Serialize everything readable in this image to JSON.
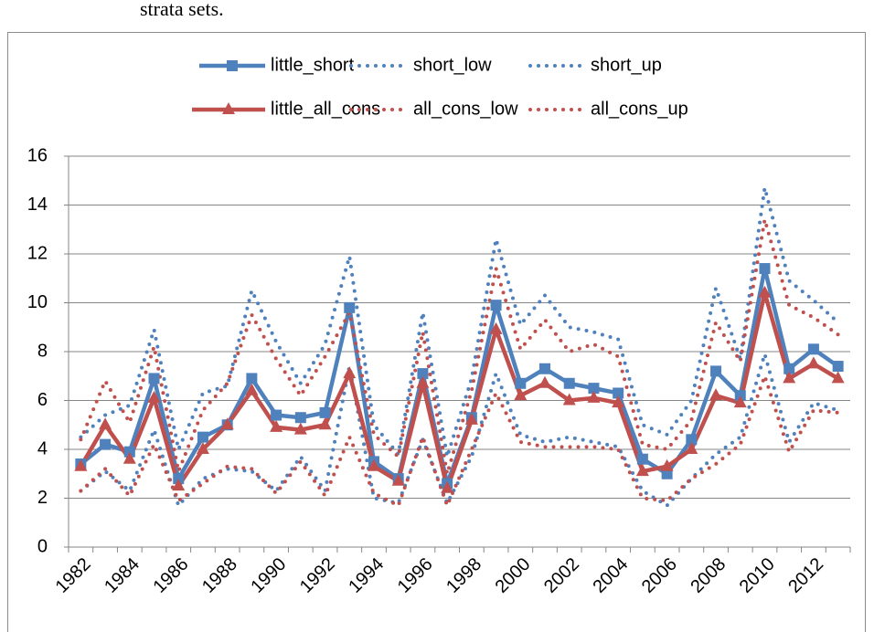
{
  "caption": "strata sets.",
  "chart_data": {
    "type": "line",
    "categories": [
      "1982",
      null,
      "1984",
      null,
      "1986",
      null,
      "1988",
      null,
      "1990",
      null,
      "1992",
      null,
      "1994",
      null,
      "1996",
      null,
      "1998",
      null,
      "2000",
      null,
      "2002",
      null,
      "2004",
      null,
      "2006",
      null,
      "2008",
      null,
      "2010",
      null,
      "2012",
      null
    ],
    "series": [
      {
        "name": "little_short",
        "color": "#4f81bd",
        "line_style": "solid",
        "marker": "square",
        "values": [
          3.4,
          4.2,
          3.9,
          6.9,
          2.8,
          4.5,
          5.0,
          6.9,
          5.4,
          5.3,
          5.5,
          9.8,
          3.5,
          2.8,
          7.1,
          2.6,
          5.3,
          9.9,
          6.7,
          7.3,
          6.7,
          6.5,
          6.3,
          3.6,
          3.0,
          4.4,
          7.2,
          6.2,
          11.4,
          7.3,
          8.1,
          7.4
        ]
      },
      {
        "name": "short_low",
        "color": "#4f81bd",
        "line_style": "dotted",
        "marker": null,
        "values": [
          2.3,
          3.1,
          2.3,
          4.8,
          1.7,
          2.8,
          3.2,
          3.1,
          2.3,
          3.7,
          2.3,
          7.4,
          2.0,
          1.8,
          4.4,
          1.8,
          3.7,
          7.1,
          4.6,
          4.3,
          4.5,
          4.3,
          4.1,
          2.3,
          1.7,
          2.8,
          3.8,
          4.5,
          7.9,
          4.3,
          5.9,
          5.6
        ]
      },
      {
        "name": "short_up",
        "color": "#4f81bd",
        "line_style": "dotted",
        "marker": null,
        "values": [
          4.5,
          5.4,
          5.8,
          8.9,
          4.0,
          6.3,
          6.6,
          10.5,
          8.4,
          6.7,
          8.3,
          11.9,
          5.0,
          3.8,
          9.6,
          3.7,
          6.9,
          12.6,
          9.1,
          10.3,
          9.0,
          8.8,
          8.5,
          5.0,
          4.6,
          6.0,
          10.6,
          7.7,
          14.7,
          10.9,
          10.1,
          9.2
        ]
      },
      {
        "name": "little_all_cons",
        "color": "#c0504d",
        "line_style": "solid",
        "marker": "triangle",
        "values": [
          3.3,
          5.0,
          3.6,
          6.1,
          2.5,
          4.0,
          5.0,
          6.4,
          4.9,
          4.8,
          5.0,
          7.1,
          3.3,
          2.7,
          6.7,
          2.4,
          5.2,
          8.9,
          6.2,
          6.7,
          6.0,
          6.1,
          5.9,
          3.1,
          3.3,
          4.0,
          6.2,
          5.9,
          10.4,
          6.9,
          7.5,
          6.9
        ]
      },
      {
        "name": "all_cons_low",
        "color": "#c0504d",
        "line_style": "dotted",
        "marker": null,
        "values": [
          2.3,
          3.2,
          2.1,
          4.2,
          1.9,
          2.6,
          3.3,
          3.2,
          2.2,
          3.5,
          2.1,
          4.5,
          2.2,
          1.7,
          4.5,
          1.7,
          4.0,
          6.3,
          4.3,
          4.1,
          4.1,
          4.1,
          4.0,
          2.0,
          1.9,
          2.8,
          3.4,
          4.2,
          7.0,
          3.9,
          5.6,
          5.5
        ]
      },
      {
        "name": "all_cons_up",
        "color": "#c0504d",
        "line_style": "dotted",
        "marker": null,
        "values": [
          4.4,
          6.8,
          5.1,
          8.2,
          3.1,
          5.6,
          6.7,
          9.5,
          7.7,
          6.2,
          7.8,
          9.6,
          4.6,
          3.7,
          8.8,
          3.0,
          6.4,
          11.4,
          8.1,
          9.3,
          8.0,
          8.3,
          7.8,
          4.2,
          4.0,
          5.2,
          9.2,
          7.6,
          13.4,
          9.9,
          9.4,
          8.7
        ]
      }
    ],
    "ylim": [
      0,
      16
    ],
    "yticks": [
      0,
      2,
      4,
      6,
      8,
      10,
      12,
      14,
      16
    ],
    "grid": true,
    "legend": "top"
  }
}
